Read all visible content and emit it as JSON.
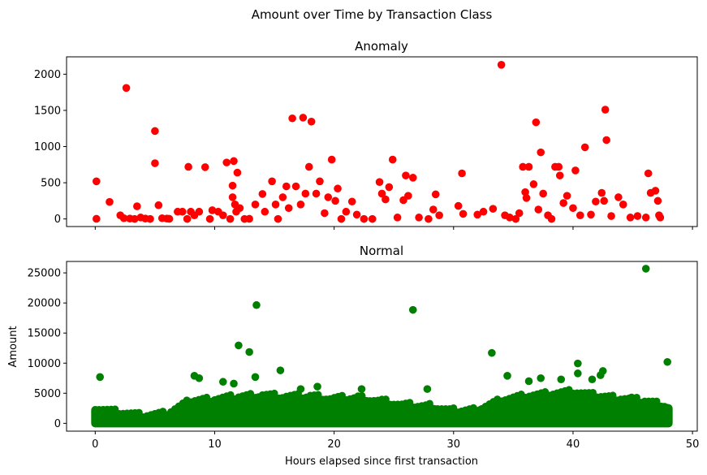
{
  "figure": {
    "suptitle": "Amount over Time by Transaction Class",
    "xlabel": "Hours elapsed since first transaction"
  },
  "chart_data": [
    {
      "type": "scatter",
      "title": "Anomaly",
      "xlabel": "",
      "ylabel": "",
      "color": "#ff0000",
      "xlim": [
        -2.4,
        50.4
      ],
      "ylim": [
        -105,
        2240
      ],
      "x_ticks": [
        0,
        10,
        20,
        30,
        40,
        50
      ],
      "x_tick_labels_shown": false,
      "y_ticks": [
        0,
        500,
        1000,
        1500,
        2000
      ],
      "y_tick_labels": [
        "0",
        "500",
        "1000",
        "1500",
        "2000"
      ],
      "points": [
        [
          0.1,
          520
        ],
        [
          0.1,
          2
        ],
        [
          1.2,
          235
        ],
        [
          2.1,
          50
        ],
        [
          2.4,
          10
        ],
        [
          2.6,
          1810
        ],
        [
          2.9,
          5
        ],
        [
          3.3,
          0
        ],
        [
          3.5,
          175
        ],
        [
          3.8,
          20
        ],
        [
          4.2,
          5
        ],
        [
          4.6,
          0
        ],
        [
          5.0,
          770
        ],
        [
          5.0,
          1215
        ],
        [
          5.3,
          190
        ],
        [
          5.6,
          10
        ],
        [
          6.0,
          5
        ],
        [
          6.2,
          2
        ],
        [
          6.9,
          100
        ],
        [
          7.3,
          100
        ],
        [
          7.7,
          0
        ],
        [
          7.8,
          720
        ],
        [
          8.0,
          100
        ],
        [
          8.3,
          50
        ],
        [
          8.7,
          100
        ],
        [
          9.2,
          715
        ],
        [
          9.6,
          0
        ],
        [
          9.8,
          120
        ],
        [
          10.3,
          100
        ],
        [
          10.7,
          50
        ],
        [
          11.0,
          780
        ],
        [
          11.3,
          0
        ],
        [
          11.5,
          300
        ],
        [
          11.5,
          460
        ],
        [
          11.6,
          800
        ],
        [
          11.7,
          200
        ],
        [
          11.8,
          100
        ],
        [
          11.9,
          640
        ],
        [
          12.1,
          150
        ],
        [
          12.5,
          0
        ],
        [
          12.9,
          2
        ],
        [
          13.4,
          200
        ],
        [
          14.0,
          345
        ],
        [
          14.2,
          100
        ],
        [
          14.8,
          520
        ],
        [
          15.1,
          200
        ],
        [
          15.3,
          0
        ],
        [
          15.7,
          300
        ],
        [
          16.0,
          450
        ],
        [
          16.2,
          150
        ],
        [
          16.5,
          1390
        ],
        [
          16.8,
          450
        ],
        [
          17.2,
          200
        ],
        [
          17.4,
          1400
        ],
        [
          17.6,
          350
        ],
        [
          17.9,
          720
        ],
        [
          18.1,
          1345
        ],
        [
          18.5,
          350
        ],
        [
          18.8,
          520
        ],
        [
          19.2,
          80
        ],
        [
          19.5,
          300
        ],
        [
          19.8,
          820
        ],
        [
          20.1,
          250
        ],
        [
          20.3,
          420
        ],
        [
          20.6,
          0
        ],
        [
          21.0,
          100
        ],
        [
          21.5,
          240
        ],
        [
          21.9,
          60
        ],
        [
          22.5,
          0
        ],
        [
          23.2,
          0
        ],
        [
          23.8,
          510
        ],
        [
          24.0,
          350
        ],
        [
          24.3,
          270
        ],
        [
          24.6,
          440
        ],
        [
          24.9,
          820
        ],
        [
          25.3,
          20
        ],
        [
          25.8,
          260
        ],
        [
          26.0,
          600
        ],
        [
          26.2,
          320
        ],
        [
          26.6,
          570
        ],
        [
          27.1,
          20
        ],
        [
          27.9,
          0
        ],
        [
          28.3,
          130
        ],
        [
          28.5,
          340
        ],
        [
          28.8,
          50
        ],
        [
          30.4,
          180
        ],
        [
          30.7,
          630
        ],
        [
          30.8,
          70
        ],
        [
          32.0,
          60
        ],
        [
          32.5,
          100
        ],
        [
          33.3,
          140
        ],
        [
          34.0,
          2130
        ],
        [
          34.3,
          50
        ],
        [
          34.7,
          20
        ],
        [
          35.2,
          0
        ],
        [
          35.5,
          80
        ],
        [
          35.8,
          720
        ],
        [
          36.0,
          370
        ],
        [
          36.1,
          290
        ],
        [
          36.3,
          720
        ],
        [
          36.7,
          480
        ],
        [
          36.9,
          1335
        ],
        [
          37.1,
          130
        ],
        [
          37.3,
          920
        ],
        [
          37.5,
          350
        ],
        [
          37.9,
          50
        ],
        [
          38.2,
          0
        ],
        [
          38.5,
          720
        ],
        [
          38.8,
          720
        ],
        [
          38.9,
          600
        ],
        [
          39.2,
          220
        ],
        [
          39.5,
          320
        ],
        [
          40.0,
          150
        ],
        [
          40.2,
          670
        ],
        [
          40.6,
          50
        ],
        [
          41.0,
          990
        ],
        [
          41.5,
          60
        ],
        [
          41.9,
          240
        ],
        [
          42.4,
          360
        ],
        [
          42.6,
          250
        ],
        [
          42.7,
          1510
        ],
        [
          42.8,
          1090
        ],
        [
          43.2,
          40
        ],
        [
          43.8,
          300
        ],
        [
          44.2,
          200
        ],
        [
          44.8,
          20
        ],
        [
          45.4,
          40
        ],
        [
          46.1,
          20
        ],
        [
          46.3,
          630
        ],
        [
          46.5,
          360
        ],
        [
          46.9,
          390
        ],
        [
          47.1,
          250
        ],
        [
          47.2,
          50
        ],
        [
          47.3,
          20
        ]
      ]
    },
    {
      "type": "scatter",
      "title": "Normal",
      "xlabel": "Hours elapsed since first transaction",
      "ylabel": "Amount",
      "color": "#008000",
      "xlim": [
        -2.4,
        50.4
      ],
      "ylim": [
        -1300,
        26900
      ],
      "x_ticks": [
        0,
        10,
        20,
        30,
        40,
        50
      ],
      "x_tick_labels": [
        "0",
        "10",
        "20",
        "30",
        "40",
        "50"
      ],
      "y_ticks": [
        0,
        5000,
        10000,
        15000,
        20000,
        25000
      ],
      "y_tick_labels": [
        "0",
        "5000",
        "10000",
        "15000",
        "20000",
        "25000"
      ],
      "points": [
        [
          0.4,
          7700
        ],
        [
          8.3,
          7900
        ],
        [
          8.7,
          7500
        ],
        [
          10.7,
          6900
        ],
        [
          11.6,
          6600
        ],
        [
          12.0,
          12950
        ],
        [
          12.9,
          11850
        ],
        [
          13.4,
          7700
        ],
        [
          13.5,
          19650
        ],
        [
          15.5,
          8800
        ],
        [
          17.2,
          5700
        ],
        [
          18.6,
          6100
        ],
        [
          22.3,
          5700
        ],
        [
          26.6,
          18850
        ],
        [
          27.8,
          5700
        ],
        [
          33.2,
          11700
        ],
        [
          34.5,
          7900
        ],
        [
          36.3,
          7000
        ],
        [
          37.3,
          7500
        ],
        [
          39.0,
          7300
        ],
        [
          40.4,
          9950
        ],
        [
          40.4,
          8300
        ],
        [
          41.6,
          7300
        ],
        [
          42.3,
          8000
        ],
        [
          42.5,
          8700
        ],
        [
          46.1,
          25700
        ],
        [
          47.9,
          10200
        ],
        [
          44.9,
          4300
        ]
      ],
      "dense_band": {
        "x_range": [
          0,
          48
        ],
        "y_floor": 0,
        "y_top_profile": [
          [
            0,
            2200
          ],
          [
            2,
            1500
          ],
          [
            4,
            900
          ],
          [
            6,
            1200
          ],
          [
            8,
            3300
          ],
          [
            10,
            3600
          ],
          [
            12,
            4000
          ],
          [
            14,
            4300
          ],
          [
            16,
            4000
          ],
          [
            18,
            4100
          ],
          [
            20,
            3700
          ],
          [
            22,
            3900
          ],
          [
            24,
            3300
          ],
          [
            26,
            2600
          ],
          [
            28,
            2500
          ],
          [
            30,
            1700
          ],
          [
            32,
            2000
          ],
          [
            34,
            3600
          ],
          [
            36,
            4200
          ],
          [
            38,
            4500
          ],
          [
            40,
            4800
          ],
          [
            42,
            4100
          ],
          [
            44,
            3700
          ],
          [
            46,
            3300
          ],
          [
            48,
            2500
          ]
        ]
      }
    }
  ]
}
